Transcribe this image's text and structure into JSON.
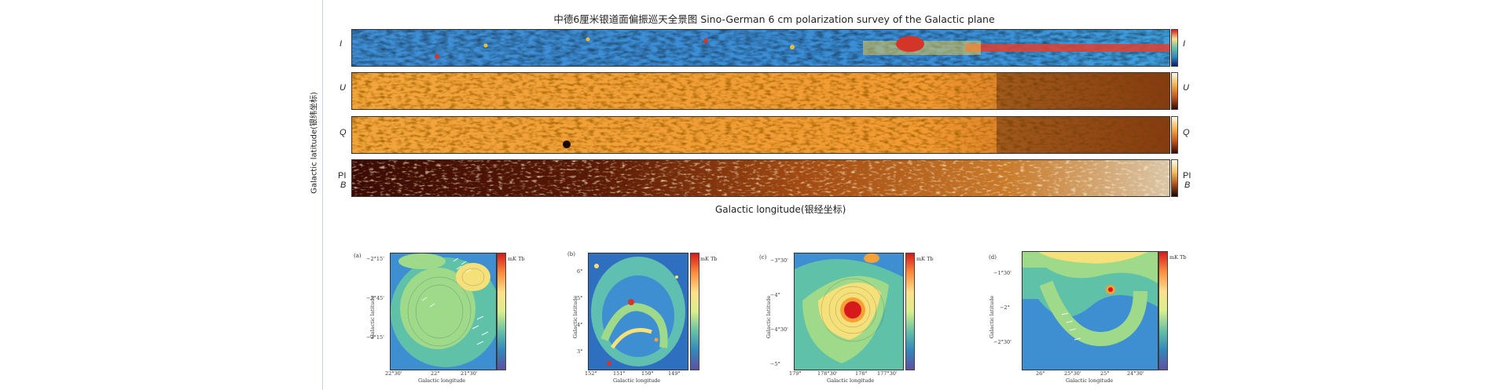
{
  "title": "中德6厘米银道面偏振巡天全景图 Sino-German 6 cm polarization survey of the Galactic plane",
  "strips": [
    {
      "key": "I",
      "left_label": "I",
      "right_label": "I"
    },
    {
      "key": "U",
      "left_label": "U",
      "right_label": "U"
    },
    {
      "key": "Q",
      "left_label": "Q",
      "right_label": "Q"
    },
    {
      "key": "PI",
      "left_label": "PI",
      "left_label2": "B",
      "right_label": "PI",
      "right_label2": "B"
    }
  ],
  "y_axis_label": "Galactic latitude(银纬坐标)",
  "x_axis_label": "Galactic longitude(银经坐标)",
  "subpanels": [
    {
      "letter": "(a)",
      "x_label": "Galactic longitude",
      "y_label": "Galactic latitude",
      "x_ticks": [
        "22°30'",
        "22°",
        "21°30'"
      ],
      "y_ticks": [
        "−2°15'",
        "−2°45'",
        "−3°15'"
      ],
      "cbar_unit": "mK Tb"
    },
    {
      "letter": "(b)",
      "x_label": "Galactic longitude",
      "y_label": "Galactic latitude",
      "x_ticks": [
        "152°",
        "151°",
        "150°",
        "149°"
      ],
      "y_ticks": [
        "6°",
        "5°",
        "4°",
        "3°"
      ],
      "cbar_unit": "mK Tb"
    },
    {
      "letter": "(c)",
      "x_label": "Galactic longitude",
      "y_label": "Galactic latitude",
      "x_ticks": [
        "179°",
        "178°30'",
        "178°",
        "177°30'"
      ],
      "y_ticks": [
        "−3°30'",
        "−4°",
        "−4°30'",
        "−5°"
      ],
      "cbar_unit": "mK Tb"
    },
    {
      "letter": "(d)",
      "x_label": "Galactic longitude",
      "y_label": "Galactic latitude",
      "x_ticks": [
        "26°",
        "25°30'",
        "25°",
        "24°30'"
      ],
      "y_ticks": [
        "−1°30'",
        "−2°",
        "−2°30'"
      ],
      "cbar_unit": "mK Tb"
    }
  ]
}
